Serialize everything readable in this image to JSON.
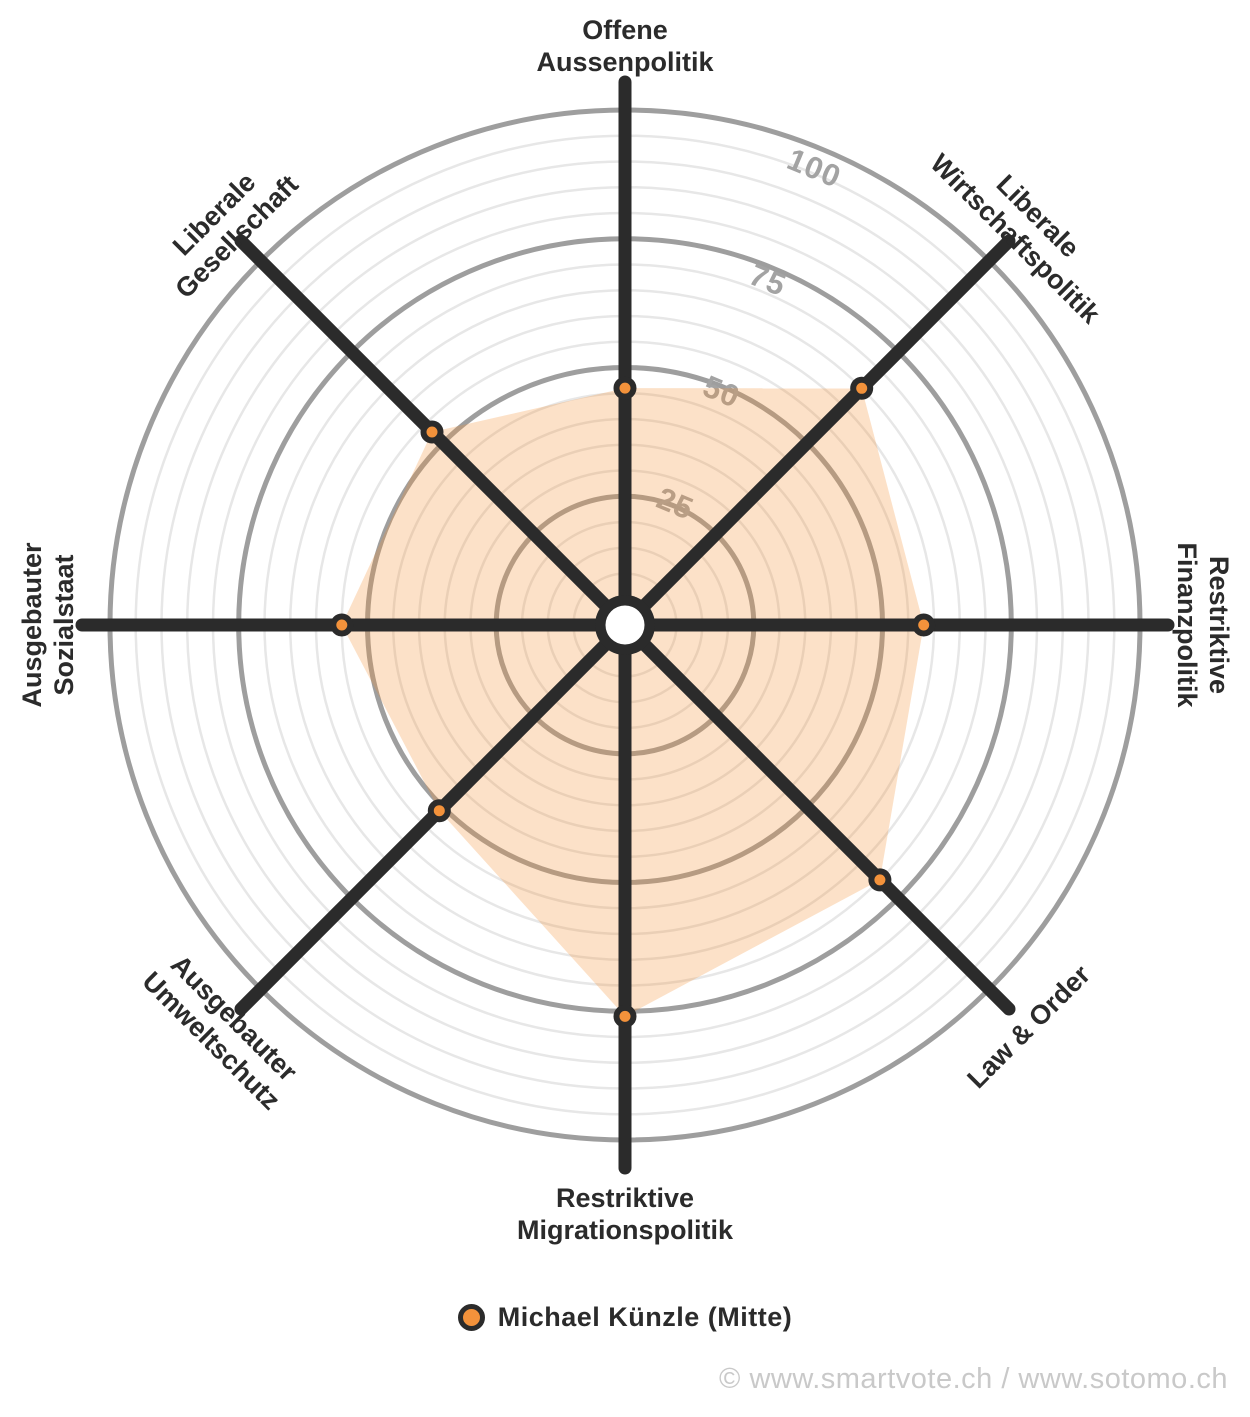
{
  "chart_data": {
    "type": "radar",
    "categories": [
      "Offene\nAussenpolitik",
      "Liberale\nWirtschaftspolitik",
      "Restriktive\nFinanzpolitik",
      "Law & Order",
      "Restriktive\nMigrationspolitik",
      "Ausgebauter\nUmweltschutz",
      "Ausgebauter\nSozialstaat",
      "Liberale\nGesellschaft"
    ],
    "series": [
      {
        "name": "Michael Künzle (Mitte)",
        "values": [
          46,
          65,
          58,
          70,
          76,
          51,
          55,
          53
        ]
      }
    ],
    "rings": {
      "min": 0,
      "max": 100,
      "major_step": 25,
      "minor_step": 5,
      "tick_labels": [
        "25",
        "50",
        "75",
        "100"
      ]
    },
    "title": "",
    "legend_position": "bottom"
  },
  "legend": {
    "label": "Michael Künzle (Mitte)"
  },
  "footer": {
    "copyright": "© www.smartvote.ch / www.sotomo.ch"
  },
  "colors": {
    "accent": "#f3923b",
    "series_fill_opacity": "0.28",
    "axis": "#2b2b2b",
    "ring_major": "#9e9e9e",
    "ring_minor": "#e7e7e7",
    "ring_label": "#a3a3a3",
    "footer": "#c9c9c9",
    "background": "#ffffff",
    "center_hub": "#ffffff"
  }
}
